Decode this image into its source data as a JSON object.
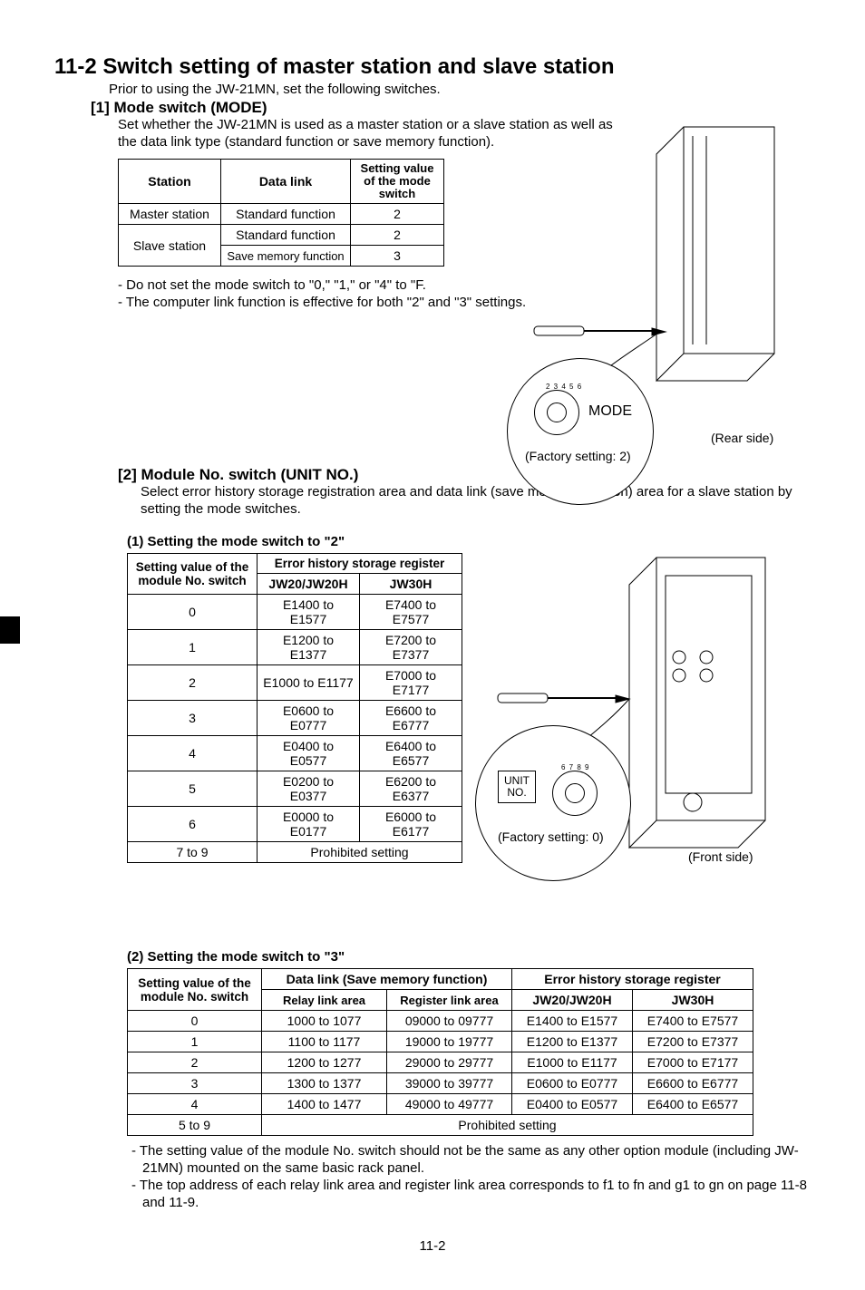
{
  "page_number": "11-2",
  "title": "11-2 Switch setting of master station and slave station",
  "intro": "Prior to using the JW-21MN, set the following switches.",
  "section1": {
    "heading": "[1] Mode switch (MODE)",
    "body": "Set whether the JW-21MN is used as a master station or a slave station as well as the data link type (standard function or save memory function).",
    "table": {
      "headers": [
        "Station",
        "Data link",
        "Setting value of the mode switch"
      ],
      "rows": [
        {
          "station": "Master station",
          "link": "Standard function",
          "val": "2",
          "rowspan": 1
        },
        {
          "station": "Slave station",
          "link": "Standard function",
          "val": "2",
          "group_start": true
        },
        {
          "station": "",
          "link": "Save memory function",
          "val": "3"
        }
      ]
    },
    "notes": [
      "- Do not set the mode switch to \"0,\" \"1,\" or \"4\" to \"F.",
      "- The computer link function is effective for both \"2\" and \"3\" settings."
    ],
    "figure": {
      "mode_label": "MODE",
      "factory": "(Factory setting: 2)",
      "rear": "(Rear side)"
    }
  },
  "section2": {
    "heading": "[2] Module No. switch (UNIT NO.)",
    "body": "Select error history storage registration area and data link (save memory function) area for a slave station by setting the mode switches.",
    "sub1": {
      "title": "(1) Setting the mode switch to \"2\"",
      "headers": {
        "c1a": "Setting value of the",
        "c1b": "module No. switch",
        "top": "Error history storage register",
        "c2": "JW20/JW20H",
        "c3": "JW30H"
      },
      "rows": [
        [
          "0",
          "E1400 to E1577",
          "E7400 to E7577"
        ],
        [
          "1",
          "E1200 to E1377",
          "E7200 to E7377"
        ],
        [
          "2",
          "E1000 to E1177",
          "E7000 to E7177"
        ],
        [
          "3",
          "E0600 to E0777",
          "E6600 to E6777"
        ],
        [
          "4",
          "E0400 to E0577",
          "E6400 to E6577"
        ],
        [
          "5",
          "E0200 to E0377",
          "E6200 to E6377"
        ],
        [
          "6",
          "E0000 to E0177",
          "E6000 to E6177"
        ]
      ],
      "prohibited_key": "7 to 9",
      "prohibited_val": "Prohibited setting"
    },
    "figure": {
      "unit_label_1": "UNIT",
      "unit_label_2": "NO.",
      "factory": "(Factory setting: 0)",
      "front": "(Front side)"
    },
    "sub2": {
      "title": "(2) Setting the mode switch to \"3\"",
      "headers": {
        "c1a": "Setting value of the",
        "c1b": "module No. switch",
        "topA": "Data link (Save memory function)",
        "topB": "Error history storage register",
        "c2": "Relay link area",
        "c3": "Register link area",
        "c4": "JW20/JW20H",
        "c5": "JW30H"
      },
      "rows": [
        [
          "0",
          "1000 to コ1077",
          "09000 to 09777",
          "E1400 to E1577",
          "E7400 to E7577"
        ],
        [
          "1",
          "1100 to コ1177",
          "19000 to 19777",
          "E1200 to E1377",
          "E7200 to E7377"
        ],
        [
          "2",
          "1200 to コ1277",
          "29000 to 29777",
          "E1000 to E1177",
          "E7000 to E7177"
        ],
        [
          "3",
          "1300 to コ1377",
          "39000 to 39777",
          "E0600 to E0777",
          "E6600 to E6777"
        ],
        [
          "4",
          "1400 to コ1477",
          "49000 to 49777",
          "E0400 to E0577",
          "E6400 to E6577"
        ]
      ],
      "prohibited_key": "5 to 9",
      "prohibited_val": "Prohibited setting"
    },
    "foot_notes": [
      "- The setting value of the module No. switch should not be the same as any other option module (including JW-21MN) mounted on the same basic rack panel.",
      "- The top address of each relay link area and register link area corresponds to f1 to fn and g1 to gn on page 11-8 and 11-9."
    ]
  }
}
